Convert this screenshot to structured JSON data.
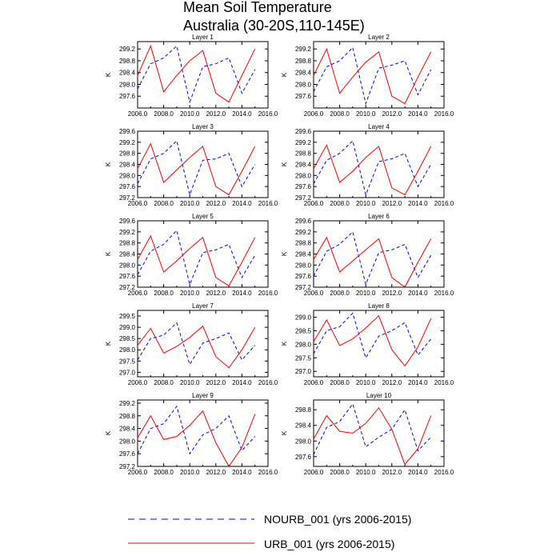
{
  "title_line1": "Mean Soil Temperature",
  "title_line2": "Australia (30-20S,110-145E)",
  "colors": {
    "urb": "#ff0000",
    "nourb": "#0000ff"
  },
  "legend": {
    "nourb_label": "NOURB_001 (yrs 2006-2015)",
    "urb_label": "URB_001 (yrs 2006-2015)"
  },
  "chart_data": [
    {
      "type": "line",
      "title": "Layer 1",
      "ylabel": "K",
      "x": [
        2006,
        2007,
        2008,
        2009,
        2010,
        2011,
        2012,
        2013,
        2014,
        2015
      ],
      "xlim": [
        2006,
        2016
      ],
      "xticks": [
        "2006.0",
        "2008.0",
        "2010.0",
        "2012.0",
        "2014.0",
        "2016.0"
      ],
      "ylim": [
        297.2,
        299.45
      ],
      "yticks": [
        "297.6",
        "298.0",
        "298.4",
        "298.8",
        "299.2"
      ],
      "series": [
        {
          "name": "NOURB_001 (yrs 2006-2015)",
          "style": "dashed",
          "values": [
            297.85,
            298.7,
            298.9,
            299.3,
            297.4,
            298.6,
            298.7,
            298.9,
            297.7,
            298.5
          ]
        },
        {
          "name": "URB_001 (yrs 2006-2015)",
          "style": "solid",
          "values": [
            298.3,
            299.3,
            297.75,
            298.3,
            298.8,
            299.15,
            297.7,
            297.4,
            298.3,
            299.2
          ]
        }
      ]
    },
    {
      "type": "line",
      "title": "Layer 2",
      "ylabel": "K",
      "x": [
        2006,
        2007,
        2008,
        2009,
        2010,
        2011,
        2012,
        2013,
        2014,
        2015
      ],
      "xlim": [
        2006,
        2016
      ],
      "xticks": [
        "2006.0",
        "2008.0",
        "2010.0",
        "2012.0",
        "2014.0",
        "2016.0"
      ],
      "ylim": [
        297.2,
        299.45
      ],
      "yticks": [
        "297.6",
        "298.0",
        "298.4",
        "298.8",
        "299.2"
      ],
      "series": [
        {
          "name": "NOURB_001 (yrs 2006-2015)",
          "style": "dashed",
          "values": [
            297.75,
            298.6,
            298.8,
            299.25,
            297.35,
            298.55,
            298.65,
            298.8,
            297.65,
            298.5
          ]
        },
        {
          "name": "URB_001 (yrs 2006-2015)",
          "style": "solid",
          "values": [
            298.3,
            299.2,
            297.7,
            298.25,
            298.75,
            299.1,
            297.6,
            297.35,
            298.25,
            299.1
          ]
        }
      ]
    },
    {
      "type": "line",
      "title": "Layer 3",
      "ylabel": "K",
      "x": [
        2006,
        2007,
        2008,
        2009,
        2010,
        2011,
        2012,
        2013,
        2014,
        2015
      ],
      "xlim": [
        2006,
        2016
      ],
      "xticks": [
        "2006.0",
        "2008.0",
        "2010.0",
        "2012.0",
        "2014.0",
        "2016.0"
      ],
      "ylim": [
        297.2,
        299.6
      ],
      "yticks": [
        "297.2",
        "297.6",
        "298.0",
        "298.4",
        "298.8",
        "299.2",
        "299.6"
      ],
      "series": [
        {
          "name": "NOURB_001 (yrs 2006-2015)",
          "style": "dashed",
          "values": [
            297.7,
            298.6,
            298.8,
            299.25,
            297.3,
            298.55,
            298.6,
            298.8,
            297.6,
            298.4
          ]
        },
        {
          "name": "URB_001 (yrs 2006-2015)",
          "style": "solid",
          "values": [
            298.25,
            299.15,
            297.75,
            298.2,
            298.65,
            299.05,
            297.6,
            297.3,
            298.15,
            299.05
          ]
        }
      ]
    },
    {
      "type": "line",
      "title": "Layer 4",
      "ylabel": "K",
      "x": [
        2006,
        2007,
        2008,
        2009,
        2010,
        2011,
        2012,
        2013,
        2014,
        2015
      ],
      "xlim": [
        2006,
        2016
      ],
      "xticks": [
        "2006.0",
        "2008.0",
        "2010.0",
        "2012.0",
        "2014.0",
        "2016.0"
      ],
      "ylim": [
        297.2,
        299.6
      ],
      "yticks": [
        "297.2",
        "297.6",
        "298.0",
        "298.4",
        "298.8",
        "299.2",
        "299.6"
      ],
      "series": [
        {
          "name": "NOURB_001 (yrs 2006-2015)",
          "style": "dashed",
          "values": [
            297.7,
            298.55,
            298.8,
            299.25,
            297.3,
            298.5,
            298.6,
            298.8,
            297.6,
            298.4
          ]
        },
        {
          "name": "URB_001 (yrs 2006-2015)",
          "style": "solid",
          "values": [
            298.25,
            299.1,
            297.75,
            298.15,
            298.65,
            299.05,
            297.55,
            297.3,
            298.15,
            299.05
          ]
        }
      ]
    },
    {
      "type": "line",
      "title": "Layer 5",
      "ylabel": "K",
      "x": [
        2006,
        2007,
        2008,
        2009,
        2010,
        2011,
        2012,
        2013,
        2014,
        2015
      ],
      "xlim": [
        2006,
        2016
      ],
      "xticks": [
        "2006.0",
        "2008.0",
        "2010.0",
        "2012.0",
        "2014.0",
        "2016.0"
      ],
      "ylim": [
        297.2,
        299.6
      ],
      "yticks": [
        "297.2",
        "297.6",
        "298.0",
        "298.4",
        "298.8",
        "299.2",
        "299.6"
      ],
      "series": [
        {
          "name": "NOURB_001 (yrs 2006-2015)",
          "style": "dashed",
          "values": [
            297.65,
            298.5,
            298.75,
            299.25,
            297.3,
            298.45,
            298.55,
            298.75,
            297.55,
            298.35
          ]
        },
        {
          "name": "URB_001 (yrs 2006-2015)",
          "style": "solid",
          "values": [
            298.2,
            299.05,
            297.75,
            298.15,
            298.6,
            299.0,
            297.55,
            297.25,
            298.1,
            299.0
          ]
        }
      ]
    },
    {
      "type": "line",
      "title": "Layer 6",
      "ylabel": "K",
      "x": [
        2006,
        2007,
        2008,
        2009,
        2010,
        2011,
        2012,
        2013,
        2014,
        2015
      ],
      "xlim": [
        2006,
        2016
      ],
      "xticks": [
        "2006.0",
        "2008.0",
        "2010.0",
        "2012.0",
        "2014.0",
        "2016.0"
      ],
      "ylim": [
        297.2,
        299.6
      ],
      "yticks": [
        "297.2",
        "297.6",
        "298.0",
        "298.4",
        "298.8",
        "299.2",
        "299.6"
      ],
      "series": [
        {
          "name": "NOURB_001 (yrs 2006-2015)",
          "style": "dashed",
          "values": [
            297.6,
            298.5,
            298.75,
            299.2,
            297.3,
            298.45,
            298.55,
            298.75,
            297.55,
            298.35
          ]
        },
        {
          "name": "URB_001 (yrs 2006-2015)",
          "style": "solid",
          "values": [
            298.2,
            299.0,
            297.75,
            298.15,
            298.55,
            298.95,
            297.55,
            297.2,
            298.1,
            298.95
          ]
        }
      ]
    },
    {
      "type": "line",
      "title": "Layer 7",
      "ylabel": "K",
      "x": [
        2006,
        2007,
        2008,
        2009,
        2010,
        2011,
        2012,
        2013,
        2014,
        2015
      ],
      "xlim": [
        2006,
        2016
      ],
      "xticks": [
        "2006.0",
        "2008.0",
        "2010.0",
        "2012.0",
        "2014.0",
        "2016.0"
      ],
      "ylim": [
        296.8,
        299.75
      ],
      "yticks": [
        "297.0",
        "297.5",
        "298.0",
        "298.5",
        "299.0",
        "299.5"
      ],
      "series": [
        {
          "name": "NOURB_001 (yrs 2006-2015)",
          "style": "dashed",
          "values": [
            297.55,
            298.5,
            298.65,
            299.2,
            297.35,
            298.3,
            298.5,
            298.75,
            297.55,
            298.2
          ]
        },
        {
          "name": "URB_001 (yrs 2006-2015)",
          "style": "solid",
          "values": [
            298.2,
            298.95,
            297.85,
            298.15,
            298.55,
            299.05,
            297.7,
            297.2,
            298.0,
            299.0
          ]
        }
      ]
    },
    {
      "type": "line",
      "title": "Layer 8",
      "ylabel": "K",
      "x": [
        2006,
        2007,
        2008,
        2009,
        2010,
        2011,
        2012,
        2013,
        2014,
        2015
      ],
      "xlim": [
        2006,
        2016
      ],
      "xticks": [
        "2006.0",
        "2008.0",
        "2010.0",
        "2012.0",
        "2014.0",
        "2016.0"
      ],
      "ylim": [
        296.8,
        299.25
      ],
      "yticks": [
        "297.0",
        "297.5",
        "298.0",
        "298.5",
        "299.0"
      ],
      "series": [
        {
          "name": "NOURB_001 (yrs 2006-2015)",
          "style": "dashed",
          "values": [
            297.65,
            298.5,
            298.65,
            299.15,
            297.5,
            298.3,
            298.5,
            298.8,
            297.6,
            298.2
          ]
        },
        {
          "name": "URB_001 (yrs 2006-2015)",
          "style": "solid",
          "values": [
            298.1,
            298.9,
            297.95,
            298.2,
            298.6,
            299.05,
            297.8,
            297.2,
            297.9,
            298.95
          ]
        }
      ]
    },
    {
      "type": "line",
      "title": "Layer 9",
      "ylabel": "K",
      "x": [
        2006,
        2007,
        2008,
        2009,
        2010,
        2011,
        2012,
        2013,
        2014,
        2015
      ],
      "xlim": [
        2006,
        2016
      ],
      "xticks": [
        "2006.0",
        "2008.0",
        "2010.0",
        "2012.0",
        "2014.0",
        "2016.0"
      ],
      "ylim": [
        297.2,
        299.3
      ],
      "yticks": [
        "297.2",
        "297.6",
        "298.0",
        "298.4",
        "298.8",
        "299.2"
      ],
      "series": [
        {
          "name": "NOURB_001 (yrs 2006-2015)",
          "style": "dashed",
          "values": [
            297.6,
            298.4,
            298.55,
            299.1,
            297.6,
            298.2,
            298.4,
            298.8,
            297.7,
            298.15
          ]
        },
        {
          "name": "URB_001 (yrs 2006-2015)",
          "style": "solid",
          "values": [
            298.1,
            298.8,
            298.05,
            298.15,
            298.5,
            298.95,
            297.95,
            297.2,
            297.8,
            298.85
          ]
        }
      ]
    },
    {
      "type": "line",
      "title": "Layer 10",
      "ylabel": "K",
      "x": [
        2006,
        2007,
        2008,
        2009,
        2010,
        2011,
        2012,
        2013,
        2014,
        2015
      ],
      "xlim": [
        2006,
        2016
      ],
      "xticks": [
        "2006.0",
        "2008.0",
        "2010.0",
        "2012.0",
        "2014.0",
        "2016.0"
      ],
      "ylim": [
        297.35,
        299.05
      ],
      "yticks": [
        "297.6",
        "298.0",
        "298.4",
        "298.8"
      ],
      "series": [
        {
          "name": "NOURB_001 (yrs 2006-2015)",
          "style": "dashed",
          "values": [
            297.65,
            298.35,
            298.5,
            298.95,
            297.85,
            298.1,
            298.3,
            298.8,
            297.75,
            298.1
          ]
        },
        {
          "name": "URB_001 (yrs 2006-2015)",
          "style": "solid",
          "values": [
            298.05,
            298.65,
            298.25,
            298.2,
            298.45,
            298.85,
            298.3,
            297.4,
            297.8,
            298.65
          ]
        }
      ]
    }
  ]
}
